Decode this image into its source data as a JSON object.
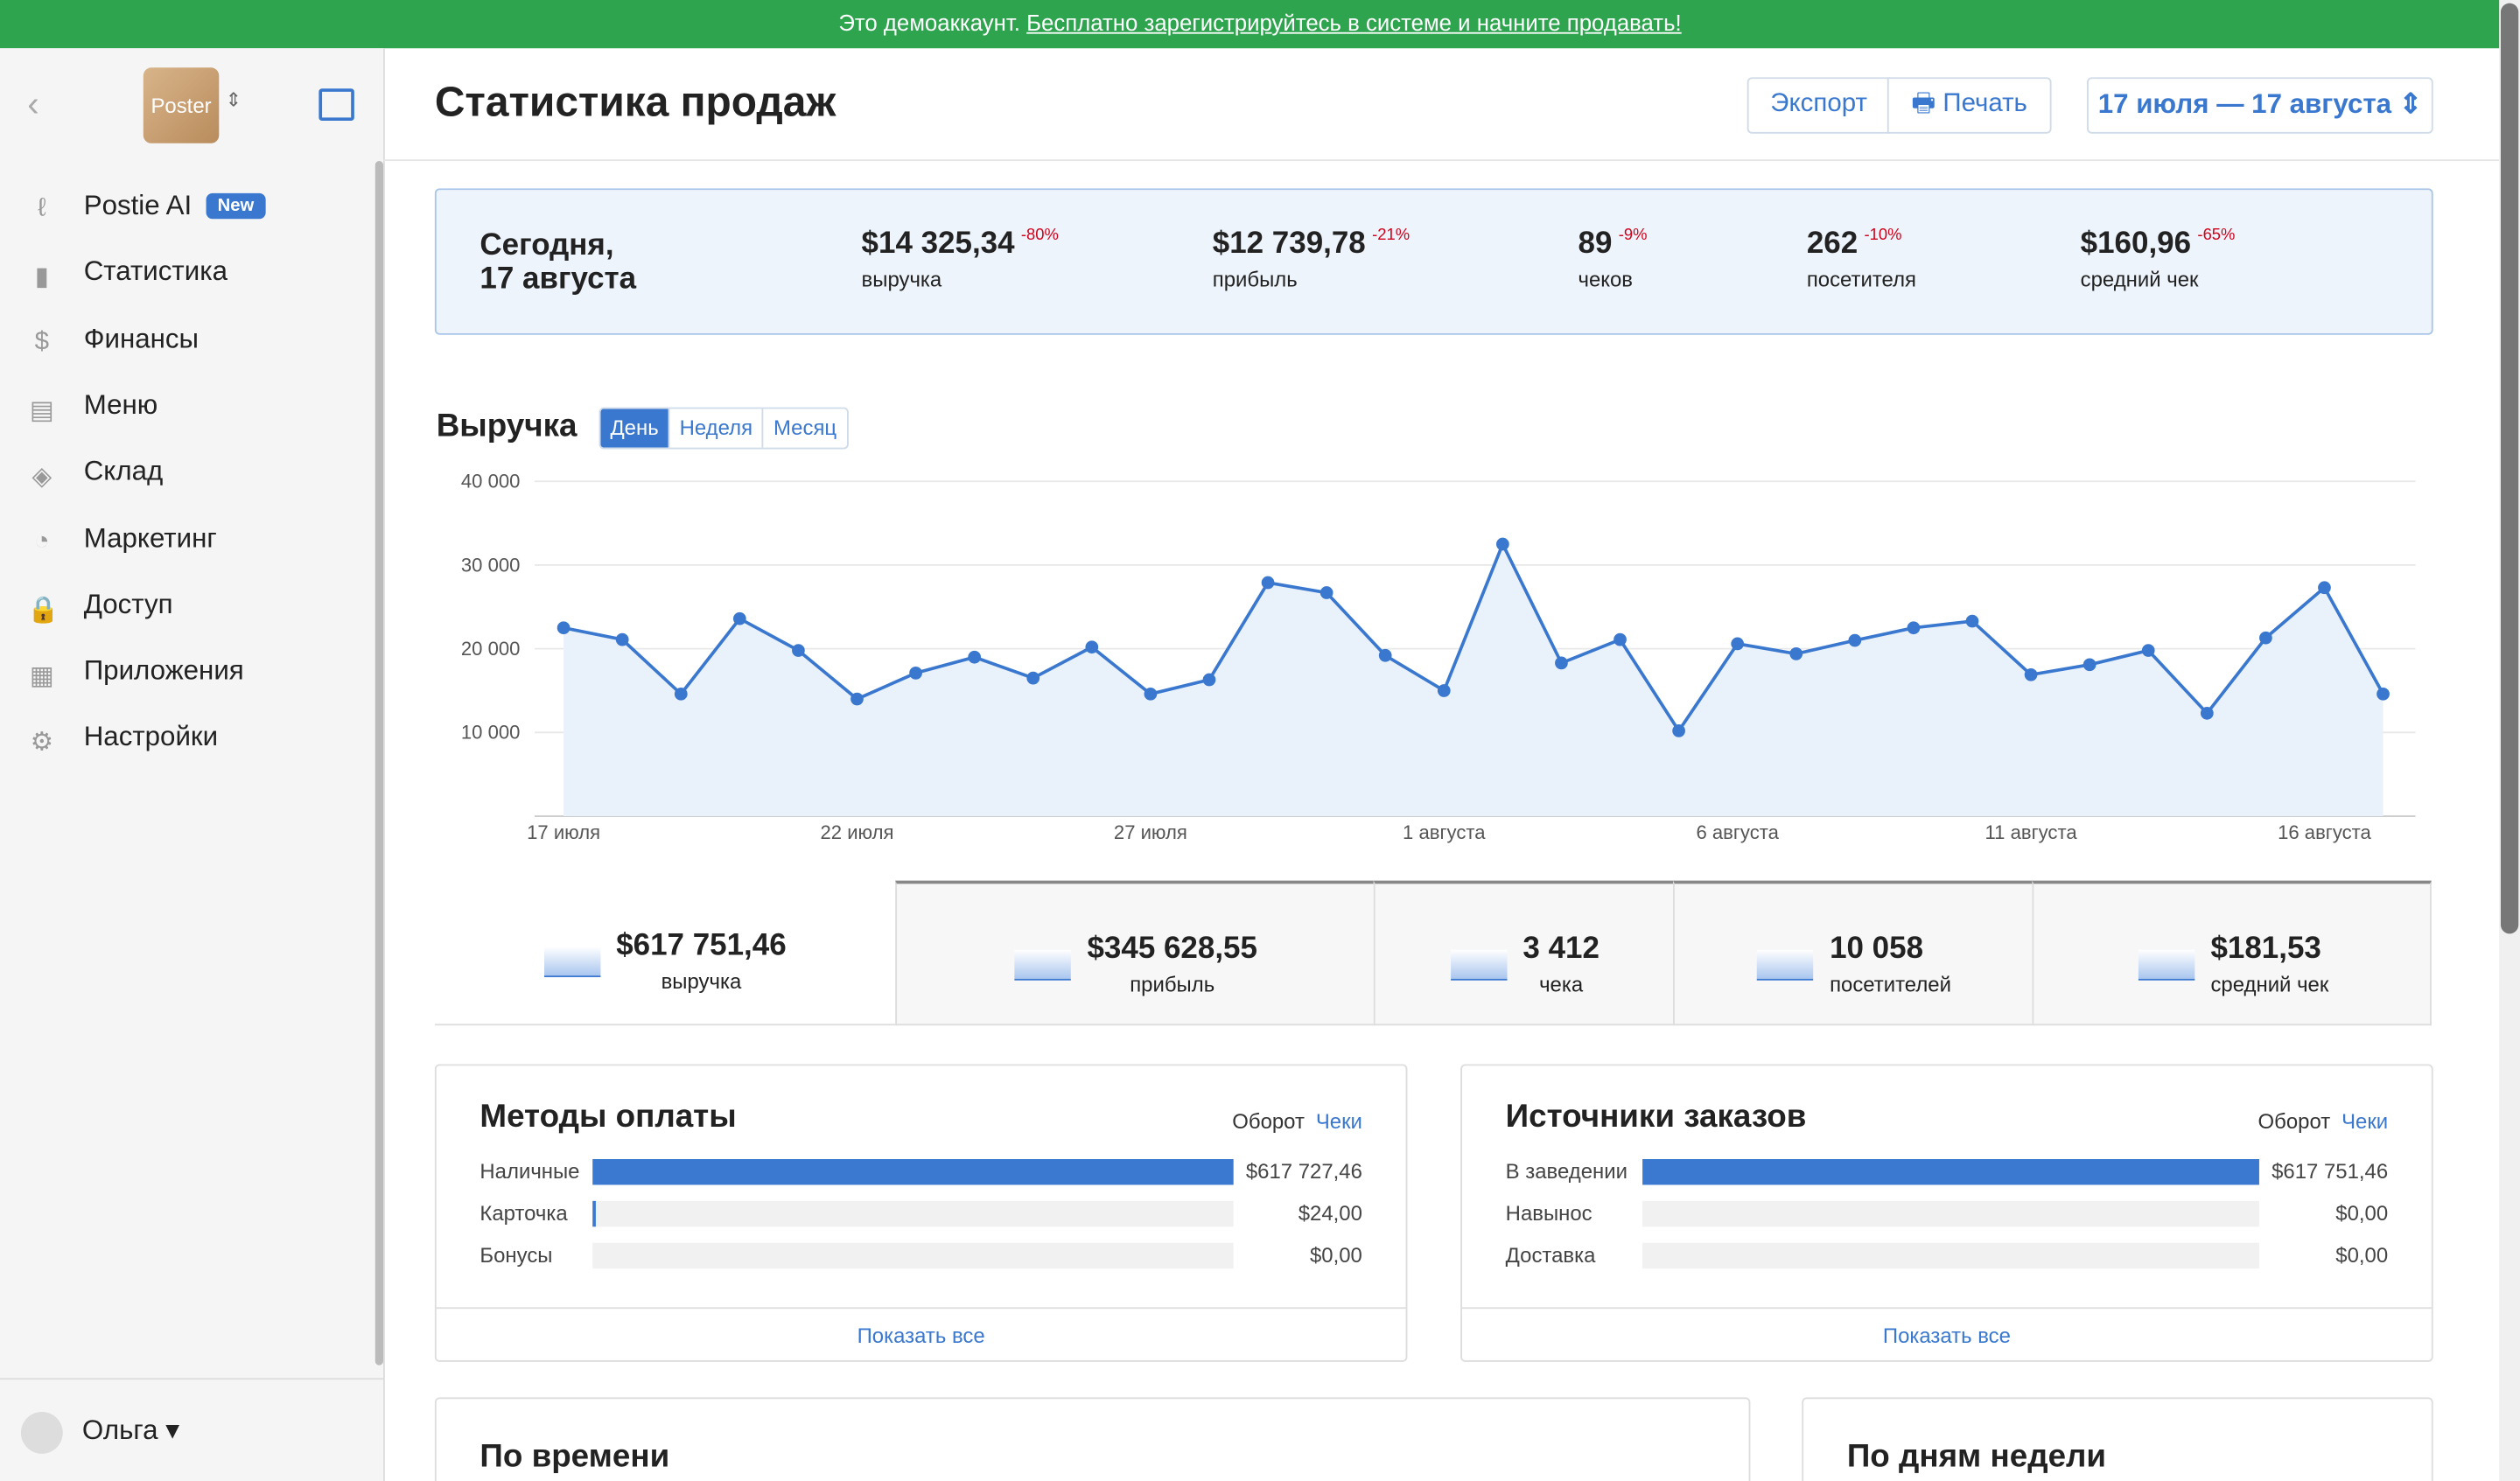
{
  "banner": {
    "text": "Это демоаккаунт.",
    "link": "Бесплатно зарегистрируйтесь в системе и начните продавать!"
  },
  "sidebar": {
    "logo": "Poster",
    "menu": [
      {
        "label": "Postie AI",
        "badge": "New"
      },
      {
        "label": "Статистика"
      },
      {
        "label": "Финансы"
      },
      {
        "label": "Меню"
      },
      {
        "label": "Склад"
      },
      {
        "label": "Маркетинг"
      },
      {
        "label": "Доступ"
      },
      {
        "label": "Приложения"
      },
      {
        "label": "Настройки"
      }
    ],
    "user": "Ольга"
  },
  "header": {
    "title": "Статистика продаж",
    "buttons": [
      "Экспорт",
      "Печать"
    ],
    "date_range": "17 июля — 17 августа"
  },
  "today": {
    "title": "Сегодня,",
    "date": "17 августа",
    "stats": [
      {
        "value": "$14 325,34",
        "change": "-80%",
        "label": "выручка"
      },
      {
        "value": "$12 739,78",
        "change": "-21%",
        "label": "прибыль"
      },
      {
        "value": "89",
        "change": "-9%",
        "label": "чеков"
      },
      {
        "value": "262",
        "change": "-10%",
        "label": "посетителя"
      },
      {
        "value": "$160,96",
        "change": "-65%",
        "label": "средний чек"
      }
    ]
  },
  "chart_data": {
    "type": "line",
    "title": "Выручка",
    "tabs": [
      "День",
      "Неделя",
      "Месяц"
    ],
    "categories": [
      "17 июля",
      null,
      null,
      null,
      null,
      "22 июля",
      null,
      null,
      null,
      null,
      "27 июля",
      null,
      null,
      null,
      null,
      "1 августа",
      null,
      null,
      null,
      null,
      "6 августа",
      null,
      null,
      null,
      null,
      "11 августа",
      null,
      null,
      null,
      null,
      "16 августа",
      null
    ],
    "values": [
      22500,
      21100,
      14600,
      23600,
      19800,
      14000,
      17100,
      19000,
      16500,
      20200,
      14600,
      16300,
      27900,
      26700,
      19200,
      15000,
      32500,
      18300,
      21100,
      10200,
      20600,
      19400,
      21000,
      22500,
      23300,
      16900,
      18100,
      19800,
      12300,
      21300,
      27300,
      14600
    ],
    "ylim": [
      0,
      40000
    ],
    "yticks": [
      {
        "value": 10000,
        "label": "10 000"
      },
      {
        "value": 20000,
        "label": "20 000"
      },
      {
        "value": 30000,
        "label": "30 000"
      },
      {
        "value": 40000,
        "label": "40 000"
      }
    ],
    "color": "#3a78cf",
    "grid": true
  },
  "totals": [
    {
      "value": "$617 751,46",
      "label": "выручка"
    },
    {
      "value": "$345 628,55",
      "label": "прибыль"
    },
    {
      "value": "3 412",
      "label": "чека"
    },
    {
      "value": "10 058",
      "label": "посетителей"
    },
    {
      "value": "$181,53",
      "label": "средний чек"
    }
  ],
  "payment_methods": {
    "title": "Методы оплаты",
    "toggle": [
      "Оборот",
      "Чеки"
    ],
    "categories": [
      "Наличные",
      "Карточка",
      "Бонусы"
    ],
    "values": [
      617727.46,
      24,
      0
    ],
    "value_labels": [
      "$617 727,46",
      "$24,00",
      "$0,00"
    ],
    "show_all": "Показать все"
  },
  "order_sources": {
    "title": "Источники заказов",
    "toggle": [
      "Оборот",
      "Чеки"
    ],
    "categories": [
      "В заведении",
      "Навынос",
      "Доставка"
    ],
    "values": [
      617751.46,
      0,
      0
    ],
    "value_labels": [
      "$617 751,46",
      "$0,00",
      "$0,00"
    ],
    "show_all": "Показать все"
  },
  "bottom_cards": [
    "По времени",
    "По дням недели"
  ]
}
